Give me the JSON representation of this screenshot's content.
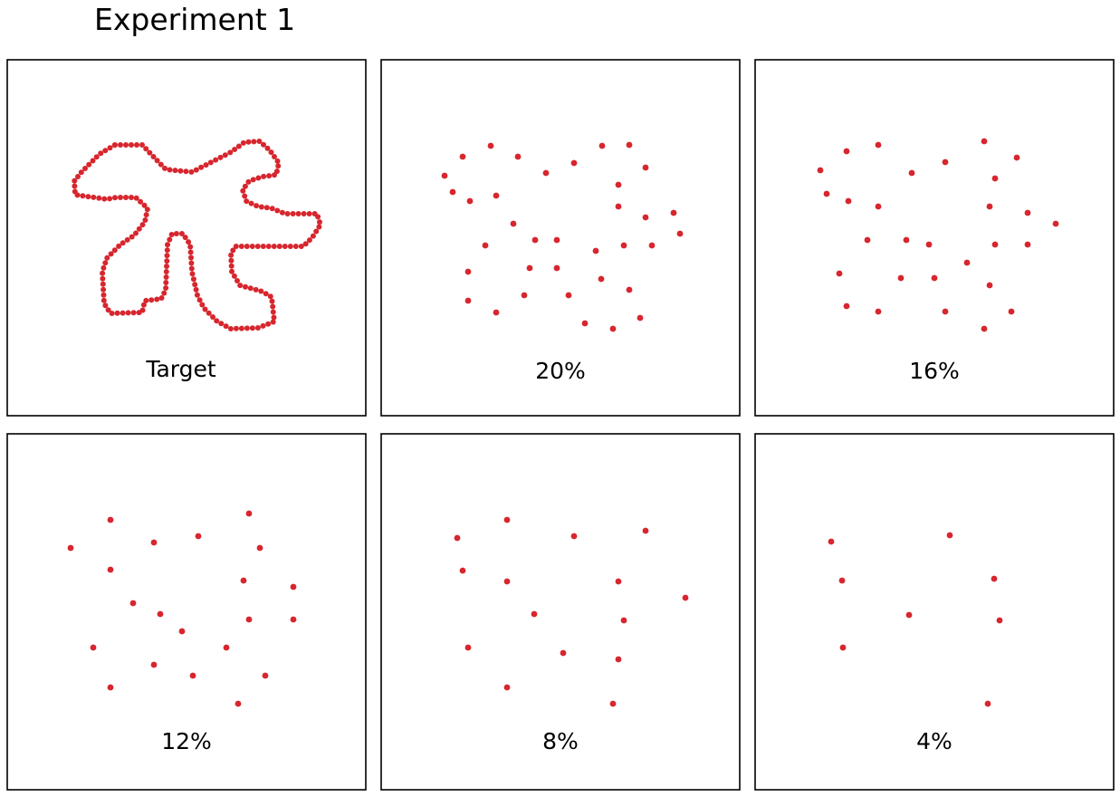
{
  "title": "Experiment 1",
  "panels": [
    {
      "label": "Target"
    },
    {
      "label": "20%"
    },
    {
      "label": "16%"
    },
    {
      "label": "12%"
    },
    {
      "label": "8%"
    },
    {
      "label": "4%"
    }
  ]
}
